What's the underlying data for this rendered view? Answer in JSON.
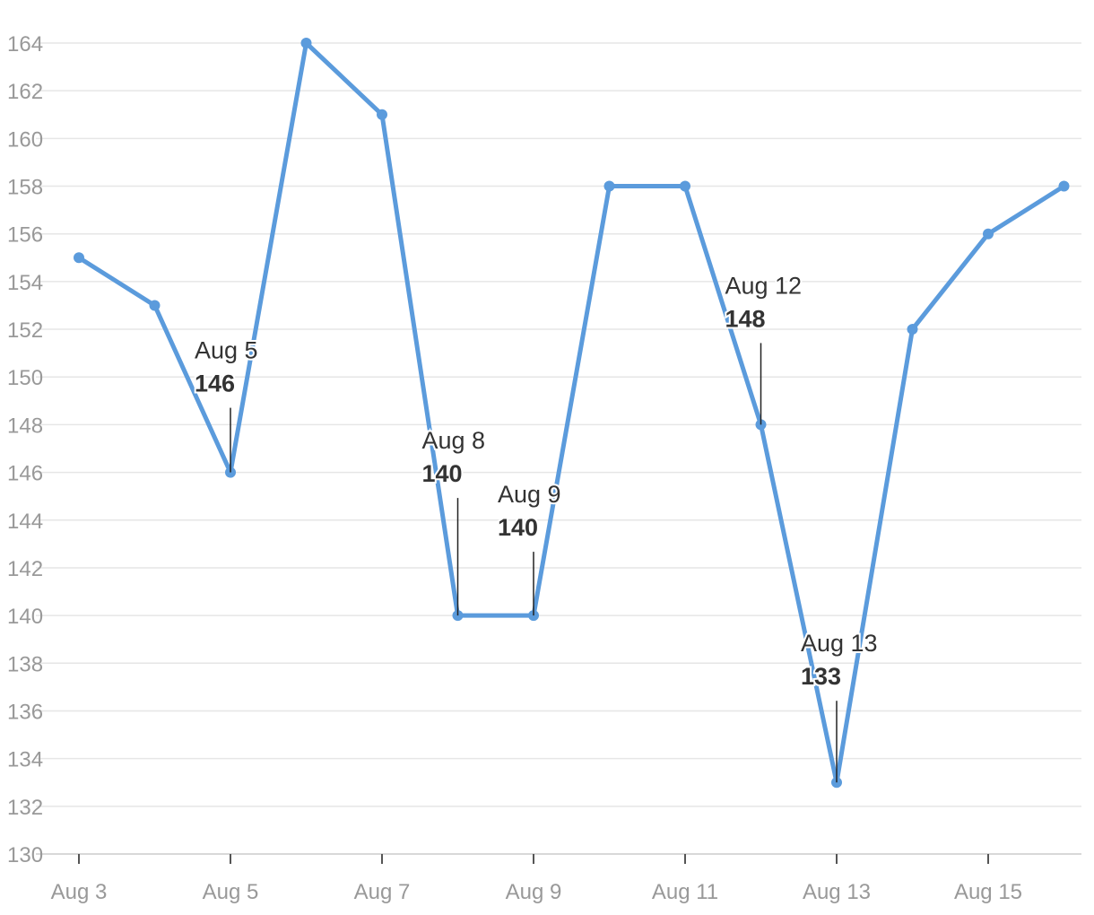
{
  "chart_data": {
    "type": "line",
    "title": "",
    "xlabel": "",
    "ylabel": "",
    "x": [
      "Aug 3",
      "Aug 4",
      "Aug 5",
      "Aug 6",
      "Aug 7",
      "Aug 8",
      "Aug 9",
      "Aug 10",
      "Aug 11",
      "Aug 12",
      "Aug 13",
      "Aug 14",
      "Aug 15",
      "Aug 16"
    ],
    "series": [
      {
        "values": [
          155,
          153,
          146,
          164,
          161,
          140,
          140,
          158,
          158,
          148,
          133,
          152,
          156,
          158
        ],
        "color": "#5b9bdc"
      }
    ],
    "ylim": [
      130,
      164
    ],
    "yticks": [
      130,
      132,
      134,
      136,
      138,
      140,
      142,
      144,
      146,
      148,
      150,
      152,
      154,
      156,
      158,
      160,
      162,
      164
    ],
    "xtick_labels": [
      "Aug 3",
      "Aug 5",
      "Aug 7",
      "Aug 9",
      "Aug 11",
      "Aug 13",
      "Aug 15"
    ],
    "grid": "horizontal",
    "annotations": [
      {
        "date": "Aug 5",
        "value": "146"
      },
      {
        "date": "Aug 8",
        "value": "140"
      },
      {
        "date": "Aug 9",
        "value": "140"
      },
      {
        "date": "Aug 12",
        "value": "148"
      },
      {
        "date": "Aug 13",
        "value": "133"
      }
    ]
  }
}
